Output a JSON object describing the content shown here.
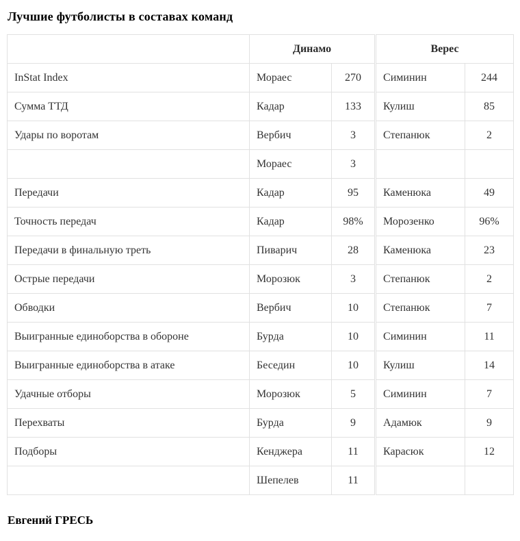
{
  "page": {
    "author": "Евгений ГРЕСЬ"
  },
  "chart_data": {
    "type": "table",
    "title": "Лучшие футболисты в составах команд",
    "header": {
      "corner": "",
      "teams": [
        "Динамо",
        "Верес"
      ]
    },
    "layout_hint": "col1=metric, col2/3=Dynamo player+value, col4/5=Veres player+value; numeric cells centered; team sections divided by double border",
    "rows": [
      [
        "InStat Index",
        "Мораес",
        "270",
        "Симинин",
        "244"
      ],
      [
        "Сумма ТТД",
        "Кадар",
        "133",
        "Кулиш",
        "85"
      ],
      [
        "Удары по воротам",
        "Вербич",
        "3",
        "Степанюк",
        "2"
      ],
      [
        "",
        "Мораес",
        "3",
        "",
        ""
      ],
      [
        "Передачи",
        "Кадар",
        "95",
        "Каменюка",
        "49"
      ],
      [
        "Точность передач",
        "Кадар",
        "98%",
        "Морозенко",
        "96%"
      ],
      [
        "Передачи в финальную треть",
        "Пиварич",
        "28",
        "Каменюка",
        "23"
      ],
      [
        "Острые передачи",
        "Морозюк",
        "3",
        "Степанюк",
        "2"
      ],
      [
        "Обводки",
        "Вербич",
        "10",
        "Степанюк",
        "7"
      ],
      [
        "Выигранные единоборства в обороне",
        "Бурда",
        "10",
        "Симинин",
        "11"
      ],
      [
        "Выигранные единоборства в атаке",
        "Беседин",
        "10",
        "Кулиш",
        "14"
      ],
      [
        "Удачные отборы",
        "Морозюк",
        "5",
        "Симинин",
        "7"
      ],
      [
        "Перехваты",
        "Бурда",
        "9",
        "Адамюк",
        "9"
      ],
      [
        "Подборы",
        "Кенджера",
        "11",
        "Карасюк",
        "12"
      ],
      [
        "",
        "Шепелев",
        "11",
        "",
        ""
      ]
    ]
  },
  "colors": {
    "border": "#e1e1e1",
    "text": "#333333",
    "heading": "#000000",
    "background": "#ffffff"
  }
}
